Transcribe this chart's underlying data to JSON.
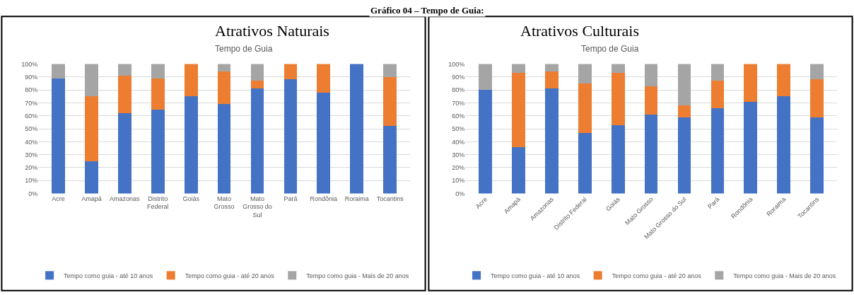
{
  "chart_data": [
    {
      "type": "bar",
      "stacked": true,
      "title": "Atrativos Naturais",
      "subtitle": "Tempo de Guia",
      "annotations": [
        "Gráfico 04 – Tempo de Guia:"
      ],
      "categories": [
        "Acre",
        "Amapá",
        "Amazonas",
        "Distrito Federal",
        "Goiás",
        "Mato Grosso",
        "Mato Grosso do Sul",
        "Pará",
        "Rondônia",
        "Roraima",
        "Tocantins"
      ],
      "series": [
        {
          "name": "Tempo como guia - até 10 anos",
          "color": "#4472c4",
          "values": [
            89,
            25,
            62,
            65,
            75,
            69,
            81,
            88,
            78,
            100,
            52
          ]
        },
        {
          "name": "Tempo como guia - até 20 anos",
          "color": "#ed7d31",
          "values": [
            0,
            50,
            29,
            24,
            25,
            25,
            6,
            12,
            22,
            0,
            38
          ]
        },
        {
          "name": "Tempo como guia - Mais de 20 anos",
          "color": "#a5a5a5",
          "values": [
            11,
            25,
            9,
            11,
            0,
            6,
            13,
            0,
            0,
            0,
            10
          ]
        }
      ],
      "ylim": [
        0,
        100
      ],
      "yticks": [
        {
          "value": 0,
          "label": "0%"
        },
        {
          "value": 10,
          "label": "10%"
        },
        {
          "value": 20,
          "label": "20%"
        },
        {
          "value": 30,
          "label": "30%"
        },
        {
          "value": 40,
          "label": "40%"
        },
        {
          "value": 50,
          "label": "50%"
        },
        {
          "value": 60,
          "label": "60%"
        },
        {
          "value": 70,
          "label": "70%"
        },
        {
          "value": 80,
          "label": "80%"
        },
        {
          "value": 90,
          "label": "90%"
        },
        {
          "value": 100,
          "label": "100%"
        }
      ],
      "grid": "y",
      "legend": "bottom"
    },
    {
      "type": "bar",
      "stacked": true,
      "title": "Atrativos Culturais",
      "subtitle": "Tempo de Guia",
      "categories": [
        "Acre",
        "Amapá",
        "Amazonas",
        "Distrito Federal",
        "Goiás",
        "Mato Grosso",
        "Mato Grosso do Sul",
        "Pará",
        "Rondônia",
        "Roraima",
        "Tocantins"
      ],
      "series": [
        {
          "name": "Tempo como guia - até 10 anos",
          "color": "#4472c4",
          "values": [
            80,
            36,
            81,
            47,
            53,
            61,
            59,
            66,
            71,
            75,
            59
          ]
        },
        {
          "name": "Tempo como guia - até 20 anos",
          "color": "#ed7d31",
          "values": [
            0,
            57,
            13,
            38,
            40,
            22,
            9,
            21,
            29,
            25,
            29
          ]
        },
        {
          "name": "Tempo como guia - Mais de 20 anos",
          "color": "#a5a5a5",
          "values": [
            20,
            7,
            6,
            15,
            7,
            17,
            32,
            13,
            0,
            0,
            12
          ]
        }
      ],
      "ylim": [
        0,
        100
      ],
      "yticks": [
        {
          "value": 0,
          "label": "0%"
        },
        {
          "value": 10,
          "label": "10%"
        },
        {
          "value": 20,
          "label": "20%"
        },
        {
          "value": 30,
          "label": "30%"
        },
        {
          "value": 40,
          "label": "40%"
        },
        {
          "value": 50,
          "label": "50%"
        },
        {
          "value": 60,
          "label": "60%"
        },
        {
          "value": 70,
          "label": "70%"
        },
        {
          "value": 80,
          "label": "80%"
        },
        {
          "value": 90,
          "label": "90%"
        },
        {
          "value": 100,
          "label": "100%"
        }
      ],
      "grid": "y",
      "legend": "bottom"
    }
  ]
}
